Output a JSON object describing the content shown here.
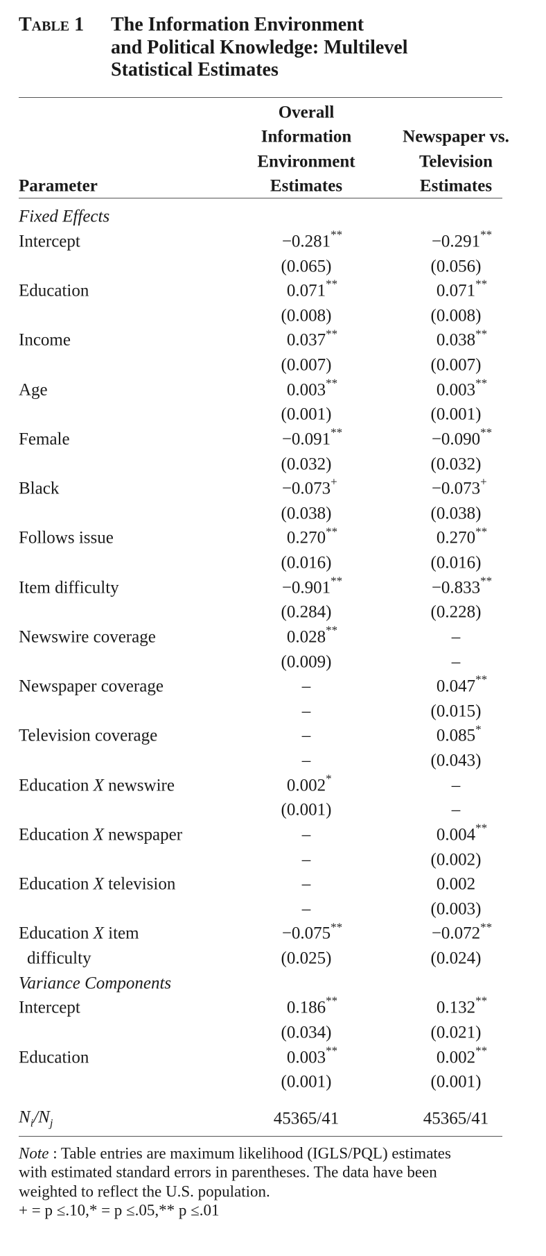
{
  "table_label": "Table 1",
  "title_lines": [
    "The Information Environment",
    "and Political Knowledge: Multilevel",
    "Statistical Estimates"
  ],
  "header": {
    "parameter": "Parameter",
    "col1": [
      "Overall",
      "Information",
      "Environment",
      "Estimates"
    ],
    "col2": [
      "Newspaper vs.",
      "Television",
      "Estimates"
    ]
  },
  "sections": [
    {
      "title": "Fixed Effects",
      "rows": [
        {
          "label": "Intercept",
          "est1": {
            "value": "−0.281",
            "sig": "**"
          },
          "se1": "(0.065)",
          "est2": {
            "value": "−0.291",
            "sig": "**"
          },
          "se2": "(0.056)"
        },
        {
          "label": "Education",
          "est1": {
            "value": "0.071",
            "sig": "**"
          },
          "se1": "(0.008)",
          "est2": {
            "value": "0.071",
            "sig": "**"
          },
          "se2": "(0.008)"
        },
        {
          "label": "Income",
          "est1": {
            "value": "0.037",
            "sig": "**"
          },
          "se1": "(0.007)",
          "est2": {
            "value": "0.038",
            "sig": "**"
          },
          "se2": "(0.007)"
        },
        {
          "label": "Age",
          "est1": {
            "value": "0.003",
            "sig": "**"
          },
          "se1": "(0.001)",
          "est2": {
            "value": "0.003",
            "sig": "**"
          },
          "se2": "(0.001)"
        },
        {
          "label": "Female",
          "est1": {
            "value": "−0.091",
            "sig": "**"
          },
          "se1": "(0.032)",
          "est2": {
            "value": "−0.090",
            "sig": "**"
          },
          "se2": "(0.032)"
        },
        {
          "label": "Black",
          "est1": {
            "value": "−0.073",
            "sig": "+"
          },
          "se1": "(0.038)",
          "est2": {
            "value": "−0.073",
            "sig": "+"
          },
          "se2": "(0.038)"
        },
        {
          "label": "Follows issue",
          "est1": {
            "value": "0.270",
            "sig": "**"
          },
          "se1": "(0.016)",
          "est2": {
            "value": "0.270",
            "sig": "**"
          },
          "se2": "(0.016)"
        },
        {
          "label": "Item difficulty",
          "est1": {
            "value": "−0.901",
            "sig": "**"
          },
          "se1": "(0.284)",
          "est2": {
            "value": "−0.833",
            "sig": "**"
          },
          "se2": "(0.228)"
        },
        {
          "label": "Newswire coverage",
          "est1": {
            "value": "0.028",
            "sig": "**"
          },
          "se1": "(0.009)",
          "est2": {
            "value": "–"
          },
          "se2": "–"
        },
        {
          "label": "Newspaper coverage",
          "est1": {
            "value": "–"
          },
          "se1": "–",
          "est2": {
            "value": "0.047",
            "sig": "**"
          },
          "se2": "(0.015)"
        },
        {
          "label": "Television coverage",
          "est1": {
            "value": "–"
          },
          "se1": "–",
          "est2": {
            "value": "0.085",
            "sig": "*"
          },
          "se2": "(0.043)"
        },
        {
          "label": "Education",
          "connector": "X",
          "label_end": "newswire",
          "est1": {
            "value": "0.002",
            "sig": "*"
          },
          "se1": "(0.001)",
          "est2": {
            "value": "–"
          },
          "se2": "–"
        },
        {
          "label": "Education",
          "connector": "X",
          "label_end": "newspaper",
          "est1": {
            "value": "–"
          },
          "se1": "–",
          "est2": {
            "value": "0.004",
            "sig": "**"
          },
          "se2": "(0.002)"
        },
        {
          "label": "Education",
          "connector": "X",
          "label_end": "television",
          "est1": {
            "value": "–"
          },
          "se1": "–",
          "est2": {
            "value": "0.002"
          },
          "se2": "(0.003)"
        },
        {
          "label": "Education",
          "connector": "X",
          "label_end": "item",
          "label_cont": "difficulty",
          "est1": {
            "value": "−0.075",
            "sig": "**"
          },
          "se1": "(0.025)",
          "est2": {
            "value": "−0.072",
            "sig": "**"
          },
          "se2": "(0.024)"
        }
      ]
    },
    {
      "title": "Variance Components",
      "rows": [
        {
          "label": "Intercept",
          "est1": {
            "value": "0.186",
            "sig": "**"
          },
          "se1": "(0.034)",
          "est2": {
            "value": "0.132",
            "sig": "**"
          },
          "se2": "(0.021)"
        },
        {
          "label": "Education",
          "est1": {
            "value": "0.003",
            "sig": "**"
          },
          "se1": "(0.001)",
          "est2": {
            "value": "0.002",
            "sig": "**"
          },
          "se2": "(0.001)"
        }
      ]
    }
  ],
  "n_row": {
    "label": {
      "base1": "N",
      "sub1": "i",
      "sep": "/",
      "base2": "N",
      "sub2": "j"
    },
    "col1": "45365/41",
    "col2": "45365/41"
  },
  "note": {
    "label": "Note",
    "lines": [
      " : Table entries are maximum likelihood (IGLS/PQL) estimates",
      "with estimated standard errors in parentheses. The data have been",
      "weighted to reflect the U.S. population."
    ],
    "significance": "+ = p ≤.10,* = p ≤.05,** p ≤.01"
  }
}
